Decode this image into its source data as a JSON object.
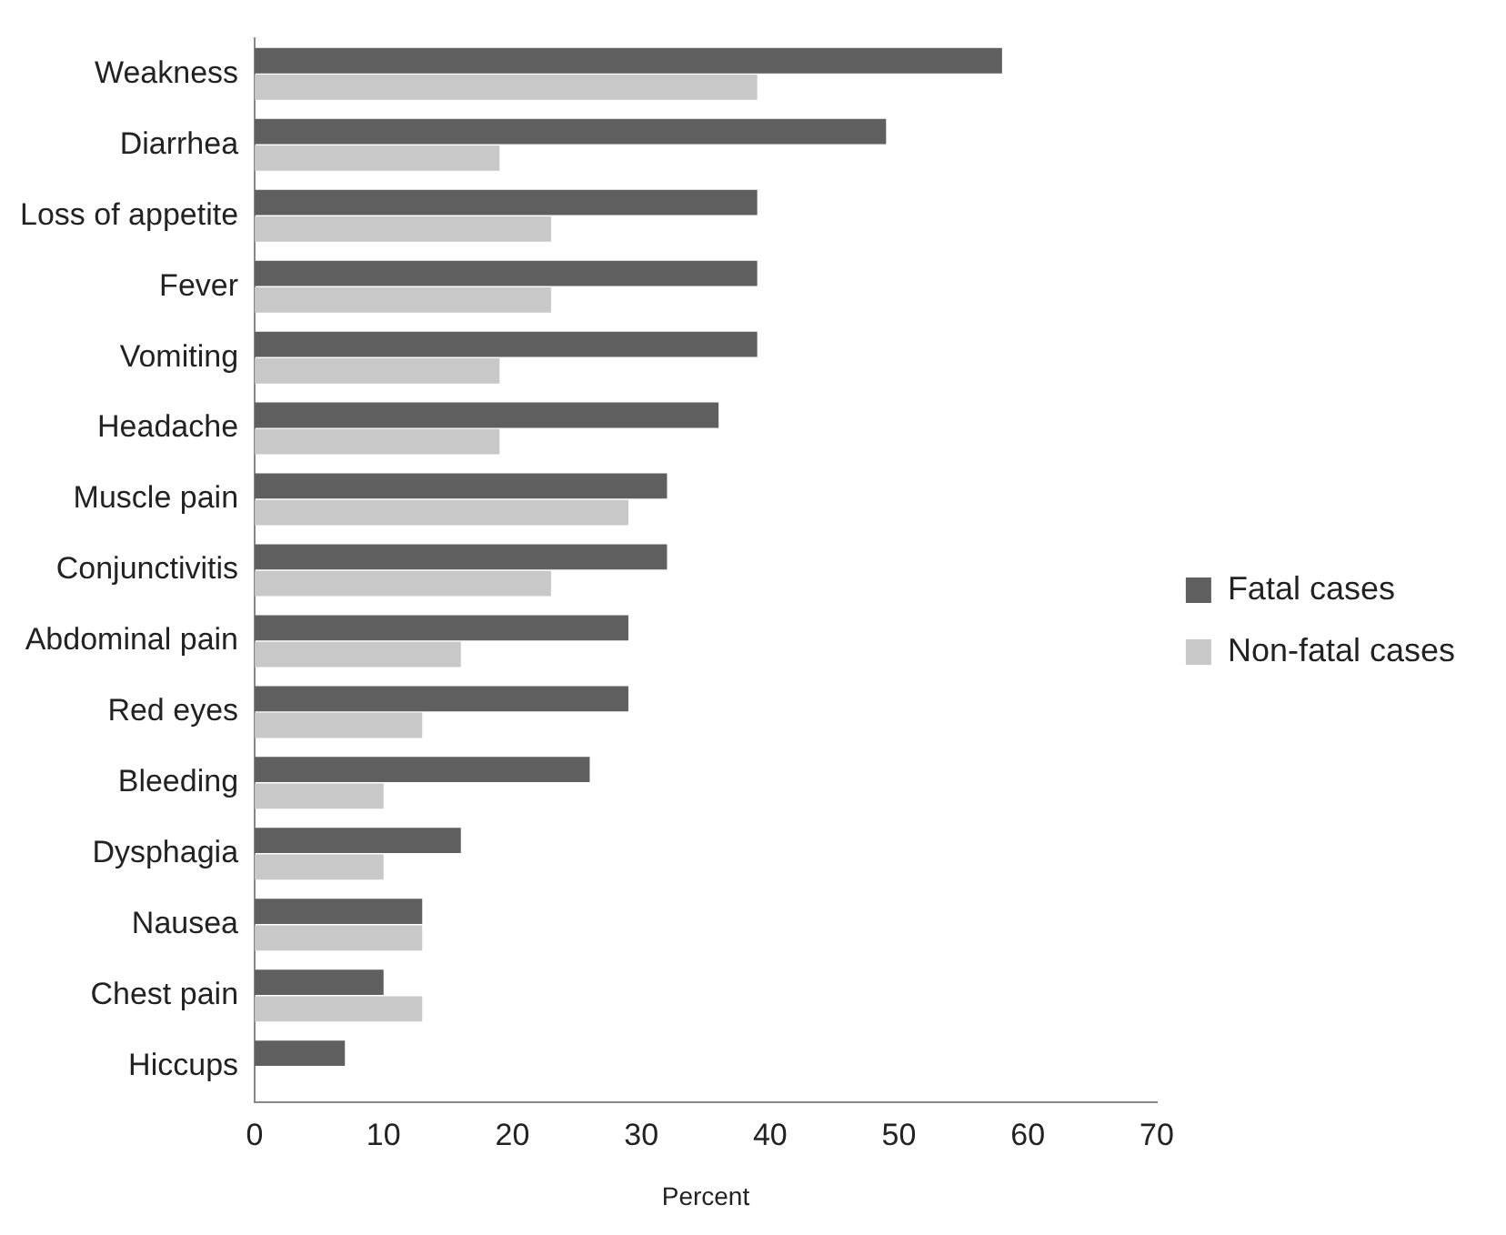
{
  "chart_data": {
    "type": "bar",
    "orientation": "horizontal",
    "xlabel": "Percent",
    "categories": [
      "Weakness",
      "Diarrhea",
      "Loss of appetite",
      "Fever",
      "Vomiting",
      "Headache",
      "Muscle pain",
      "Conjunctivitis",
      "Abdominal pain",
      "Red eyes",
      "Bleeding",
      "Dysphagia",
      "Nausea",
      "Chest pain",
      "Hiccups"
    ],
    "series": [
      {
        "name": "Fatal cases",
        "color": "#5f5f5f",
        "values": [
          58,
          49,
          39,
          39,
          39,
          36,
          32,
          32,
          29,
          29,
          26,
          16,
          13,
          10,
          7
        ]
      },
      {
        "name": "Non-fatal cases",
        "color": "#c8c8c8",
        "values": [
          39,
          19,
          23,
          23,
          19,
          19,
          29,
          23,
          16,
          13,
          10,
          10,
          13,
          13,
          null
        ]
      }
    ],
    "xlim": [
      0,
      70
    ],
    "xticks": [
      0,
      10,
      20,
      30,
      40,
      50,
      60,
      70
    ],
    "grid": false,
    "legend": "right"
  }
}
